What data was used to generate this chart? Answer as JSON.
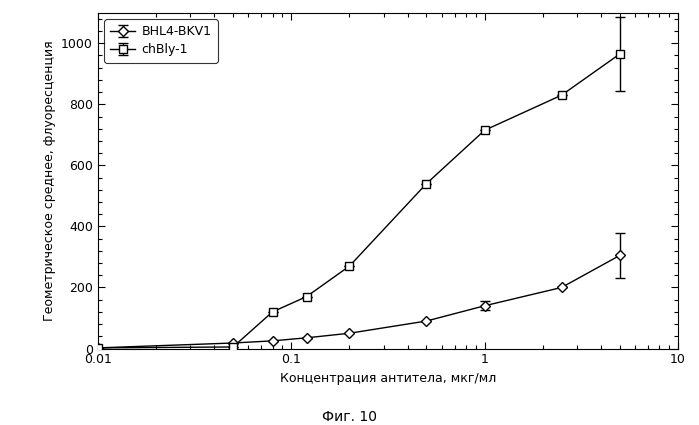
{
  "bhl4_x": [
    0.01,
    0.05,
    0.08,
    0.12,
    0.2,
    0.5,
    1.0,
    2.5,
    5.0
  ],
  "bhl4_y": [
    2,
    18,
    25,
    35,
    50,
    90,
    140,
    200,
    305
  ],
  "bhl4_yerr_lo": [
    0,
    0,
    0,
    0,
    0,
    0,
    15,
    0,
    75
  ],
  "bhl4_yerr_hi": [
    0,
    0,
    0,
    0,
    0,
    0,
    15,
    0,
    75
  ],
  "chbly_x": [
    0.01,
    0.05,
    0.08,
    0.12,
    0.2,
    0.5,
    1.0,
    2.5,
    5.0
  ],
  "chbly_y": [
    2,
    5,
    120,
    170,
    270,
    540,
    715,
    830,
    965
  ],
  "chbly_yerr_lo": [
    0,
    0,
    0,
    0,
    0,
    0,
    0,
    0,
    120
  ],
  "chbly_yerr_hi": [
    0,
    0,
    0,
    0,
    0,
    0,
    0,
    0,
    120
  ],
  "xlabel": "Концентрация антитела, мкг/мл",
  "ylabel": "Геометрическое среднее, флуоресценция",
  "caption": "Фиг. 10",
  "legend_bhl4": "BHL4-BKV1",
  "legend_chbly": "chBly-1",
  "xlim": [
    0.01,
    10
  ],
  "ylim": [
    0,
    1100
  ],
  "yticks": [
    0,
    200,
    400,
    600,
    800,
    1000
  ],
  "bg_color": "#ffffff",
  "line_color": "#000000"
}
